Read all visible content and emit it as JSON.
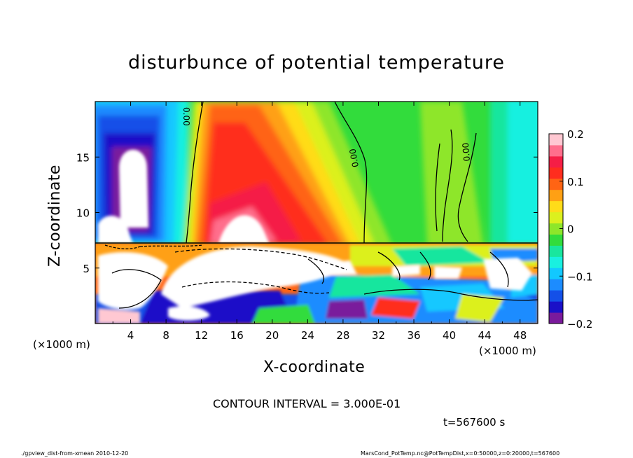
{
  "page": {
    "footer_left": "./gpview_dist-from-xmean  2010-12-20",
    "footer_right": "MarsCond_PotTemp.nc@PotTempDist,x=0:50000,z=0:20000,t=567600"
  },
  "chart_data": {
    "type": "heatmap",
    "title": "disturbunce of potential temperature",
    "xlabel": "X-coordinate",
    "ylabel": "Z-coordinate",
    "x_unit_left": "(×1000 m)",
    "x_unit_right": "(×1000 m)",
    "xlim": [
      0,
      50
    ],
    "ylim": [
      0,
      20
    ],
    "x_ticks": [
      4,
      8,
      12,
      16,
      20,
      24,
      28,
      32,
      36,
      40,
      44,
      48
    ],
    "x_tick_labels": [
      "4",
      "8",
      "12",
      "16",
      "20",
      "24",
      "28",
      "32",
      "36",
      "40",
      "44",
      "48"
    ],
    "y_ticks": [
      5,
      10,
      15
    ],
    "y_tick_labels": [
      "5",
      "10",
      "15"
    ],
    "colorbar": {
      "range": [
        -0.2,
        0.2
      ],
      "ticks": [
        -0.2,
        -0.1,
        0,
        0.1,
        0.2
      ],
      "tick_labels": [
        "−0.2",
        "−0.1",
        "0",
        "0.1",
        "0.2"
      ],
      "colors": [
        "#7a1a9c",
        "#1a10c8",
        "#1450e8",
        "#1c8cff",
        "#12c8ff",
        "#19f0e0",
        "#19e69e",
        "#32dc3c",
        "#8ee62a",
        "#dcf01e",
        "#ffdc19",
        "#ffa014",
        "#ff6414",
        "#ff2d1e",
        "#f51e46",
        "#ff6e8c",
        "#ffc8d2"
      ]
    },
    "contour_interval_text": "CONTOUR INTERVAL = 3.000E-01",
    "time_text": "t=567600 s",
    "contour_labels": [
      "0.00",
      "0.00",
      "0.00"
    ],
    "interface_height": 7.3
  }
}
